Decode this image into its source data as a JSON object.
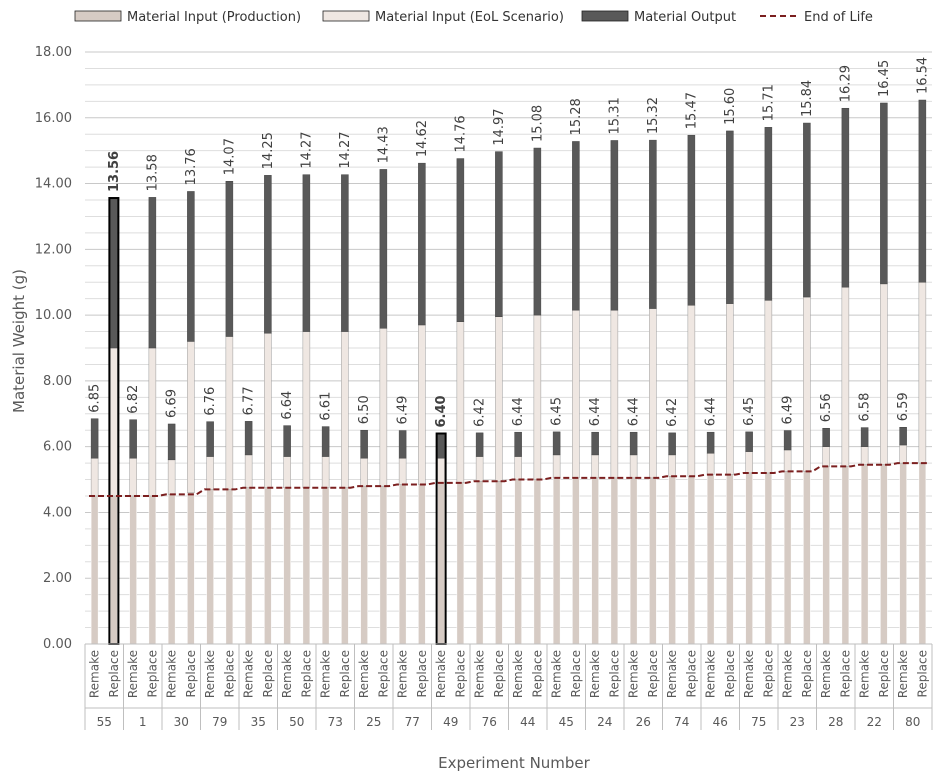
{
  "chart_data": {
    "type": "bar",
    "stacked": true,
    "xlabel": "Experiment Number",
    "ylabel": "Material Weight (g)",
    "ylim": [
      0,
      18
    ],
    "yticks": [
      "0.00",
      "2.00",
      "4.00",
      "6.00",
      "8.00",
      "10.00",
      "12.00",
      "14.00",
      "16.00",
      "18.00"
    ],
    "grid": true,
    "legend_position": "top",
    "legend": [
      {
        "label": "Material Input (Production)",
        "color": "#d6cbc4",
        "kind": "bar"
      },
      {
        "label": "Material Input (EoL Scenario)",
        "color": "#efe7e2",
        "kind": "bar"
      },
      {
        "label": "Material Output",
        "color": "#595959",
        "kind": "bar"
      },
      {
        "label": "End of Life",
        "color": "#7b1f1f",
        "kind": "dashed-line"
      }
    ],
    "subcategories": [
      "Remake",
      "Replace"
    ],
    "experiments": [
      "55",
      "1",
      "30",
      "79",
      "35",
      "50",
      "73",
      "25",
      "77",
      "49",
      "76",
      "44",
      "45",
      "24",
      "26",
      "74",
      "46",
      "75",
      "23",
      "28",
      "22",
      "80"
    ],
    "totals_remake": [
      "6.85",
      "6.82",
      "6.69",
      "6.76",
      "6.77",
      "6.64",
      "6.61",
      "6.50",
      "6.49",
      "6.40",
      "6.42",
      "6.44",
      "6.45",
      "6.44",
      "6.44",
      "6.42",
      "6.44",
      "6.45",
      "6.49",
      "6.56",
      "6.58",
      "6.59"
    ],
    "totals_replace": [
      "13.56",
      "13.58",
      "13.76",
      "14.07",
      "14.25",
      "14.27",
      "14.27",
      "14.43",
      "14.62",
      "14.76",
      "14.97",
      "15.08",
      "15.28",
      "15.31",
      "15.32",
      "15.47",
      "15.60",
      "15.71",
      "15.84",
      "16.29",
      "16.45",
      "16.54"
    ],
    "production_remake": [
      4.5,
      4.5,
      4.55,
      4.7,
      4.75,
      4.75,
      4.75,
      4.8,
      4.85,
      4.9,
      4.95,
      5.0,
      5.05,
      5.05,
      5.05,
      5.1,
      5.15,
      5.2,
      5.25,
      5.4,
      5.45,
      5.5
    ],
    "production_replace": [
      4.5,
      4.5,
      4.6,
      4.7,
      4.75,
      4.75,
      4.75,
      4.8,
      4.85,
      4.9,
      4.95,
      5.0,
      5.05,
      5.05,
      5.05,
      5.1,
      5.15,
      5.2,
      5.25,
      5.4,
      5.45,
      5.5
    ],
    "eol_remake": [
      1.15,
      1.15,
      1.05,
      1.0,
      1.0,
      0.95,
      0.95,
      0.85,
      0.8,
      0.75,
      0.75,
      0.7,
      0.7,
      0.7,
      0.7,
      0.65,
      0.65,
      0.65,
      0.65,
      0.6,
      0.55,
      0.55
    ],
    "eol_replace": [
      4.5,
      4.5,
      4.6,
      4.65,
      4.7,
      4.75,
      4.75,
      4.8,
      4.85,
      4.9,
      5.0,
      5.0,
      5.1,
      5.1,
      5.15,
      5.2,
      5.2,
      5.25,
      5.3,
      5.45,
      5.5,
      5.5
    ],
    "end_of_life": [
      4.5,
      4.5,
      4.55,
      4.7,
      4.75,
      4.75,
      4.75,
      4.8,
      4.85,
      4.9,
      4.95,
      5.0,
      5.05,
      5.05,
      5.05,
      5.1,
      5.15,
      5.2,
      5.25,
      5.4,
      5.45,
      5.5
    ],
    "highlighted": [
      {
        "experiment": "55",
        "bar": "Replace"
      },
      {
        "experiment": "49",
        "bar": "Remake"
      }
    ]
  }
}
